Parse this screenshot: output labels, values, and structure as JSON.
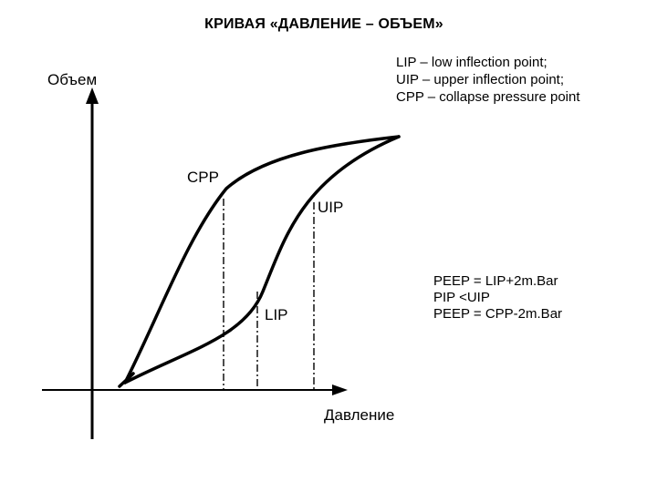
{
  "title": "КРИВАЯ «ДАВЛЕНИЕ – ОБЪЕМ»",
  "axes": {
    "y_label": "Объем",
    "x_label": "Давление"
  },
  "points": {
    "cpp": "CPP",
    "uip": "UIP",
    "lip": "LIP"
  },
  "legend": {
    "lines": [
      "LIP – low inflection point;",
      "UIP – upper inflection point;",
      "CPP – collapse pressure point"
    ]
  },
  "formulas": {
    "lines": [
      "PEEP = LIP+2m.Bar",
      "PIP <UIP",
      "PEEP = CPP-2m.Bar"
    ]
  },
  "colors": {
    "ink": "#000000",
    "background": "#ffffff"
  }
}
